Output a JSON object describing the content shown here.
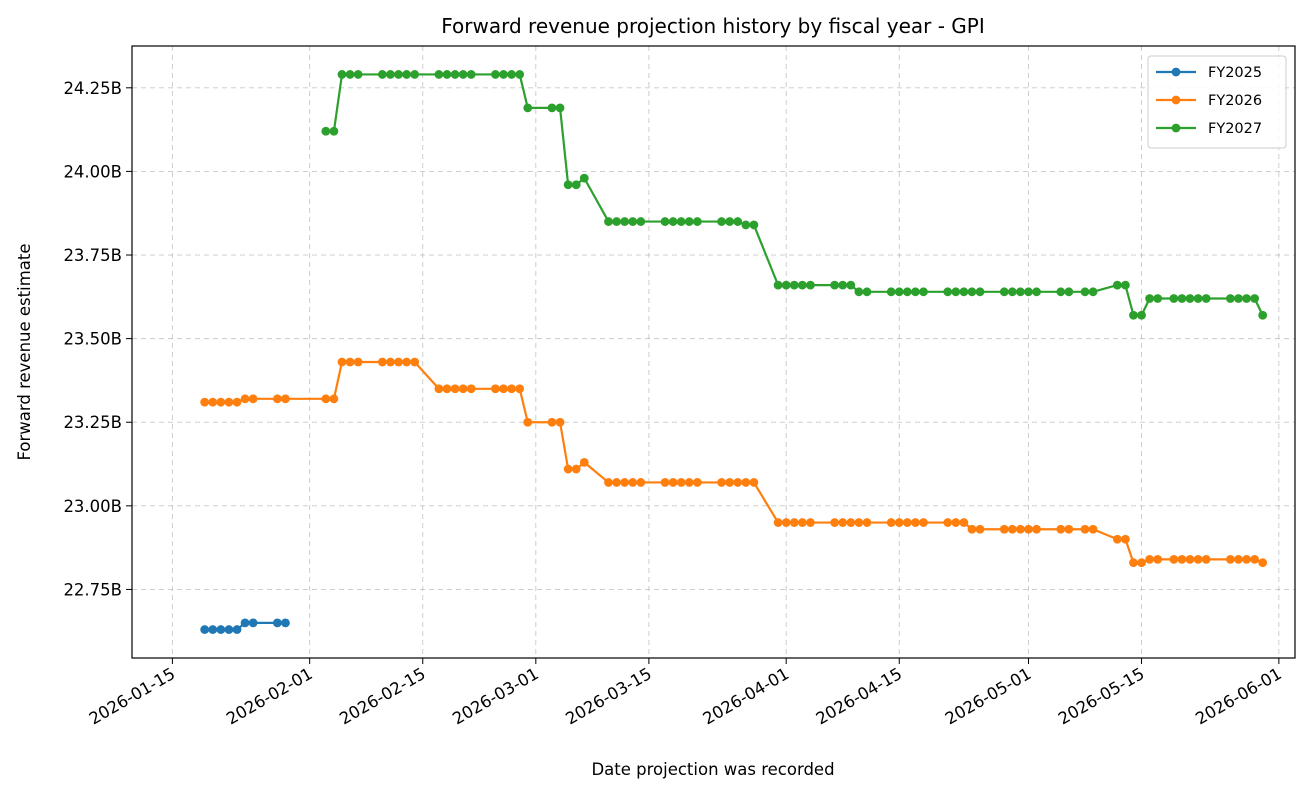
{
  "chart_data": {
    "type": "line",
    "title": "Forward revenue projection history by fiscal year - GPI",
    "xlabel": "Date projection was recorded",
    "ylabel": "Forward revenue estimate",
    "x_ticks": [
      "2026-01-15",
      "2026-02-01",
      "2026-02-15",
      "2026-03-01",
      "2026-03-15",
      "2026-04-01",
      "2026-04-15",
      "2026-05-01",
      "2026-05-15",
      "2026-06-01"
    ],
    "y_ticks": [
      22.75,
      23.0,
      23.25,
      23.5,
      23.75,
      24.0,
      24.25
    ],
    "y_tick_labels": [
      "22.75B",
      "23.00B",
      "23.25B",
      "23.50B",
      "23.75B",
      "24.00B",
      "24.25B"
    ],
    "xlim": [
      "2026-01-10",
      "2026-06-03"
    ],
    "ylim": [
      22.545,
      24.375
    ],
    "y_unit": "billions",
    "grid": true,
    "legend_position": "top-right",
    "series": [
      {
        "name": "FY2025",
        "color": "#1f77b4",
        "x": [
          "2026-01-19",
          "2026-01-20",
          "2026-01-21",
          "2026-01-22",
          "2026-01-23",
          "2026-01-24",
          "2026-01-25",
          "2026-01-28",
          "2026-01-29"
        ],
        "y": [
          22.63,
          22.63,
          22.63,
          22.63,
          22.63,
          22.65,
          22.65,
          22.65,
          22.65
        ]
      },
      {
        "name": "FY2026",
        "color": "#ff7f0e",
        "x": [
          "2026-01-19",
          "2026-01-20",
          "2026-01-21",
          "2026-01-22",
          "2026-01-23",
          "2026-01-24",
          "2026-01-25",
          "2026-01-28",
          "2026-01-29",
          "2026-02-03",
          "2026-02-04",
          "2026-02-05",
          "2026-02-06",
          "2026-02-07",
          "2026-02-10",
          "2026-02-11",
          "2026-02-12",
          "2026-02-13",
          "2026-02-14",
          "2026-02-17",
          "2026-02-18",
          "2026-02-19",
          "2026-02-20",
          "2026-02-21",
          "2026-02-24",
          "2026-02-25",
          "2026-02-26",
          "2026-02-27",
          "2026-02-28",
          "2026-03-03",
          "2026-03-04",
          "2026-03-05",
          "2026-03-06",
          "2026-03-07",
          "2026-03-10",
          "2026-03-11",
          "2026-03-12",
          "2026-03-13",
          "2026-03-14",
          "2026-03-17",
          "2026-03-18",
          "2026-03-19",
          "2026-03-20",
          "2026-03-21",
          "2026-03-24",
          "2026-03-25",
          "2026-03-26",
          "2026-03-27",
          "2026-03-28",
          "2026-03-31",
          "2026-04-01",
          "2026-04-02",
          "2026-04-03",
          "2026-04-04",
          "2026-04-07",
          "2026-04-08",
          "2026-04-09",
          "2026-04-10",
          "2026-04-11",
          "2026-04-14",
          "2026-04-15",
          "2026-04-16",
          "2026-04-17",
          "2026-04-18",
          "2026-04-21",
          "2026-04-22",
          "2026-04-23",
          "2026-04-24",
          "2026-04-25",
          "2026-04-28",
          "2026-04-29",
          "2026-04-30",
          "2026-05-01",
          "2026-05-02",
          "2026-05-05",
          "2026-05-06",
          "2026-05-08",
          "2026-05-09",
          "2026-05-12",
          "2026-05-13",
          "2026-05-14",
          "2026-05-15",
          "2026-05-16",
          "2026-05-17",
          "2026-05-19",
          "2026-05-20",
          "2026-05-21",
          "2026-05-22",
          "2026-05-23",
          "2026-05-26",
          "2026-05-27",
          "2026-05-28",
          "2026-05-29",
          "2026-05-30"
        ],
        "y": [
          23.31,
          23.31,
          23.31,
          23.31,
          23.31,
          23.32,
          23.32,
          23.32,
          23.32,
          23.32,
          23.32,
          23.43,
          23.43,
          23.43,
          23.43,
          23.43,
          23.43,
          23.43,
          23.43,
          23.35,
          23.35,
          23.35,
          23.35,
          23.35,
          23.35,
          23.35,
          23.35,
          23.35,
          23.25,
          23.25,
          23.25,
          23.11,
          23.11,
          23.13,
          23.07,
          23.07,
          23.07,
          23.07,
          23.07,
          23.07,
          23.07,
          23.07,
          23.07,
          23.07,
          23.07,
          23.07,
          23.07,
          23.07,
          23.07,
          22.95,
          22.95,
          22.95,
          22.95,
          22.95,
          22.95,
          22.95,
          22.95,
          22.95,
          22.95,
          22.95,
          22.95,
          22.95,
          22.95,
          22.95,
          22.95,
          22.95,
          22.95,
          22.93,
          22.93,
          22.93,
          22.93,
          22.93,
          22.93,
          22.93,
          22.93,
          22.93,
          22.93,
          22.93,
          22.9,
          22.9,
          22.83,
          22.83,
          22.84,
          22.84,
          22.84,
          22.84,
          22.84,
          22.84,
          22.84,
          22.84,
          22.84,
          22.84,
          22.84,
          22.83
        ]
      },
      {
        "name": "FY2027",
        "color": "#2ca02c",
        "x": [
          "2026-02-03",
          "2026-02-04",
          "2026-02-05",
          "2026-02-06",
          "2026-02-07",
          "2026-02-10",
          "2026-02-11",
          "2026-02-12",
          "2026-02-13",
          "2026-02-14",
          "2026-02-17",
          "2026-02-18",
          "2026-02-19",
          "2026-02-20",
          "2026-02-21",
          "2026-02-24",
          "2026-02-25",
          "2026-02-26",
          "2026-02-27",
          "2026-02-28",
          "2026-03-03",
          "2026-03-04",
          "2026-03-05",
          "2026-03-06",
          "2026-03-07",
          "2026-03-10",
          "2026-03-11",
          "2026-03-12",
          "2026-03-13",
          "2026-03-14",
          "2026-03-17",
          "2026-03-18",
          "2026-03-19",
          "2026-03-20",
          "2026-03-21",
          "2026-03-24",
          "2026-03-25",
          "2026-03-26",
          "2026-03-27",
          "2026-03-28",
          "2026-03-31",
          "2026-04-01",
          "2026-04-02",
          "2026-04-03",
          "2026-04-04",
          "2026-04-07",
          "2026-04-08",
          "2026-04-09",
          "2026-04-10",
          "2026-04-11",
          "2026-04-14",
          "2026-04-15",
          "2026-04-16",
          "2026-04-17",
          "2026-04-18",
          "2026-04-21",
          "2026-04-22",
          "2026-04-23",
          "2026-04-24",
          "2026-04-25",
          "2026-04-28",
          "2026-04-29",
          "2026-04-30",
          "2026-05-01",
          "2026-05-02",
          "2026-05-05",
          "2026-05-06",
          "2026-05-08",
          "2026-05-09",
          "2026-05-12",
          "2026-05-13",
          "2026-05-14",
          "2026-05-15",
          "2026-05-16",
          "2026-05-17",
          "2026-05-19",
          "2026-05-20",
          "2026-05-21",
          "2026-05-22",
          "2026-05-23",
          "2026-05-26",
          "2026-05-27",
          "2026-05-28",
          "2026-05-29",
          "2026-05-30"
        ],
        "y": [
          24.12,
          24.12,
          24.29,
          24.29,
          24.29,
          24.29,
          24.29,
          24.29,
          24.29,
          24.29,
          24.29,
          24.29,
          24.29,
          24.29,
          24.29,
          24.29,
          24.29,
          24.29,
          24.29,
          24.19,
          24.19,
          24.19,
          23.96,
          23.96,
          23.98,
          23.85,
          23.85,
          23.85,
          23.85,
          23.85,
          23.85,
          23.85,
          23.85,
          23.85,
          23.85,
          23.85,
          23.85,
          23.85,
          23.84,
          23.84,
          23.66,
          23.66,
          23.66,
          23.66,
          23.66,
          23.66,
          23.66,
          23.66,
          23.64,
          23.64,
          23.64,
          23.64,
          23.64,
          23.64,
          23.64,
          23.64,
          23.64,
          23.64,
          23.64,
          23.64,
          23.64,
          23.64,
          23.64,
          23.64,
          23.64,
          23.64,
          23.64,
          23.64,
          23.64,
          23.66,
          23.66,
          23.57,
          23.57,
          23.62,
          23.62,
          23.62,
          23.62,
          23.62,
          23.62,
          23.62,
          23.62,
          23.62,
          23.62,
          23.62,
          23.57
        ]
      }
    ]
  }
}
